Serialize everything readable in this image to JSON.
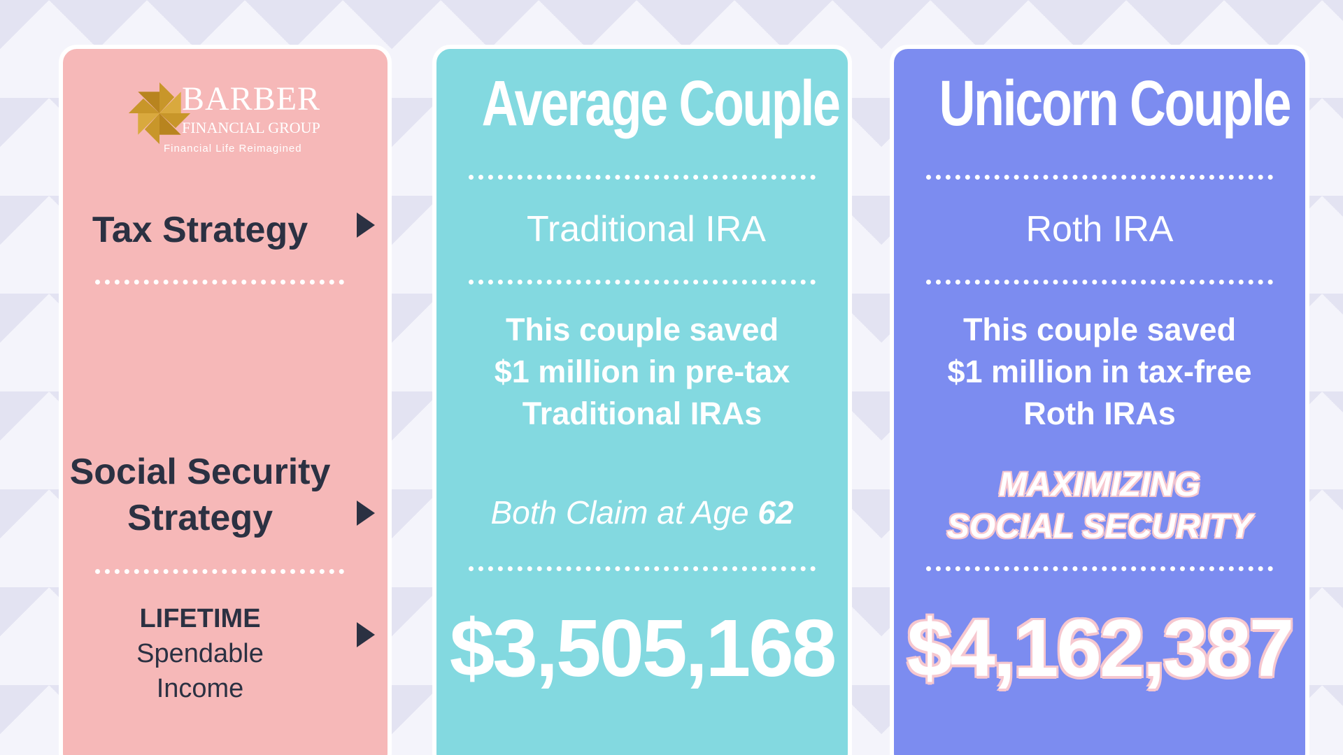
{
  "logo": {
    "name": "BARBER",
    "subtitle": "FINANCIAL GROUP",
    "tagline": "Financial Life Reimagined"
  },
  "labels": {
    "tax_strategy": "Tax Strategy",
    "social_security_line1": "Social Security",
    "social_security_line2": "Strategy",
    "lifetime": "LIFETIME",
    "spendable": "Spendable",
    "income": "Income"
  },
  "average": {
    "title": "Average Couple",
    "tax_strategy": "Traditional IRA",
    "saved_line1": "This couple saved",
    "saved_line2": "$1 million in pre-tax",
    "saved_line3": "Traditional IRAs",
    "claim_text": "Both Claim at Age",
    "claim_age": "62",
    "lifetime_income": "$3,505,168"
  },
  "unicorn": {
    "title": "Unicorn Couple",
    "tax_strategy": "Roth IRA",
    "saved_line1": "This couple saved",
    "saved_line2": "$1 million in tax-free",
    "saved_line3": "Roth IRAs",
    "ss_line1": "MAXIMIZING",
    "ss_line2": "SOCIAL SECURITY",
    "lifetime_income": "$4,162,387"
  },
  "colors": {
    "labels_panel": "#f6b8b8",
    "average_panel": "#83d9e0",
    "unicorn_panel": "#7c8cf0",
    "dark_text": "#2b3142",
    "logo_gold": "#c8962a",
    "unicorn_accent": "#f6c7cf"
  }
}
